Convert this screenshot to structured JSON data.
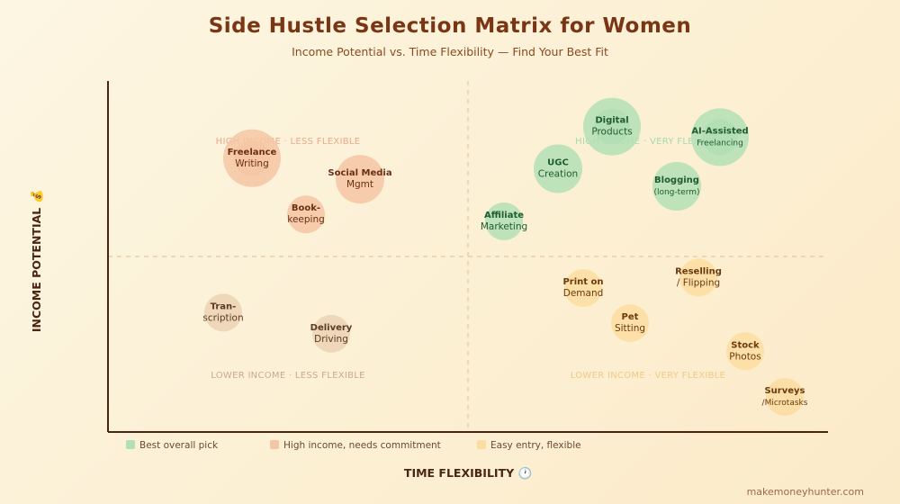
{
  "title": "Side Hustle Selection Matrix for Women",
  "subtitle": "Income Potential vs. Time Flexibility — Find Your Best Fit",
  "watermark": "makemoneyhunter.com",
  "colors": {
    "best": "#b3dfb5",
    "high": "#f5c6a5",
    "easy": "#fbdda0",
    "neutral": "#ecd3b5",
    "axis": "#4a2612",
    "title": "#7a3514"
  },
  "chart_data": {
    "type": "scatter",
    "title": "Side Hustle Selection Matrix for Women",
    "subtitle": "Income Potential vs. Time Flexibility — Find Your Best Fit",
    "xlabel": "TIME FLEXIBILITY 🕐",
    "ylabel": "INCOME POTENTIAL 💰",
    "xlim": [
      0,
      100
    ],
    "ylim": [
      0,
      100
    ],
    "dividers": {
      "x": 50,
      "y": 50
    },
    "grid": false,
    "legend_position": "bottom-left",
    "quadrants": [
      {
        "key": "tl",
        "label": "HIGH INCOME · LESS FLEXIBLE",
        "color": "#e8a98a"
      },
      {
        "key": "tr",
        "label": "HIGH INCOME · VERY FLEXIBLE",
        "color": "#a8d8b0"
      },
      {
        "key": "bl",
        "label": "LOWER INCOME · LESS FLEXIBLE",
        "color": "#c9a98f"
      },
      {
        "key": "br",
        "label": "LOWER INCOME · VERY FLEXIBLE",
        "color": "#f0c987"
      }
    ],
    "legend": [
      {
        "label": "Best overall pick",
        "category": "best"
      },
      {
        "label": "High income, needs commitment",
        "category": "high"
      },
      {
        "label": "Easy entry, flexible",
        "category": "easy"
      }
    ],
    "points": [
      {
        "line1": "Freelance",
        "line2": "Writing",
        "x": 20,
        "y": 78,
        "size": "large",
        "category": "high"
      },
      {
        "line1": "Social Media",
        "line2": "Mgmt",
        "x": 35,
        "y": 72,
        "size": "medium",
        "category": "high"
      },
      {
        "line1": "Book-",
        "line2": "keeping",
        "x": 27.5,
        "y": 62,
        "size": "small",
        "category": "high"
      },
      {
        "line1": "Digital",
        "line2": "Products",
        "x": 70,
        "y": 87,
        "size": "large",
        "category": "best"
      },
      {
        "line1": "AI-Assisted",
        "line2": "Freelancing",
        "x": 85,
        "y": 84,
        "size": "large",
        "category": "best"
      },
      {
        "line1": "UGC",
        "line2": "Creation",
        "x": 62.5,
        "y": 75,
        "size": "medium",
        "category": "best"
      },
      {
        "line1": "Blogging",
        "line2": "(long-term)",
        "x": 79,
        "y": 70,
        "size": "medium",
        "category": "best"
      },
      {
        "line1": "Affiliate",
        "line2": "Marketing",
        "x": 55,
        "y": 60,
        "size": "small",
        "category": "best"
      },
      {
        "line1": "Tran-",
        "line2": "scription",
        "x": 16,
        "y": 34,
        "size": "small",
        "category": "neutral"
      },
      {
        "line1": "Delivery",
        "line2": "Driving",
        "x": 31,
        "y": 28,
        "size": "small",
        "category": "neutral"
      },
      {
        "line1": "Print on",
        "line2": "Demand",
        "x": 66,
        "y": 41,
        "size": "small",
        "category": "easy"
      },
      {
        "line1": "Reselling",
        "line2": "/ Flipping",
        "x": 82,
        "y": 44,
        "size": "small",
        "category": "easy"
      },
      {
        "line1": "Pet",
        "line2": "Sitting",
        "x": 72.5,
        "y": 31,
        "size": "small",
        "category": "easy"
      },
      {
        "line1": "Stock",
        "line2": "Photos",
        "x": 88.5,
        "y": 23,
        "size": "small",
        "category": "easy"
      },
      {
        "line1": "Surveys",
        "line2": "/Microtasks",
        "x": 94,
        "y": 10,
        "size": "small",
        "category": "easy"
      }
    ]
  }
}
